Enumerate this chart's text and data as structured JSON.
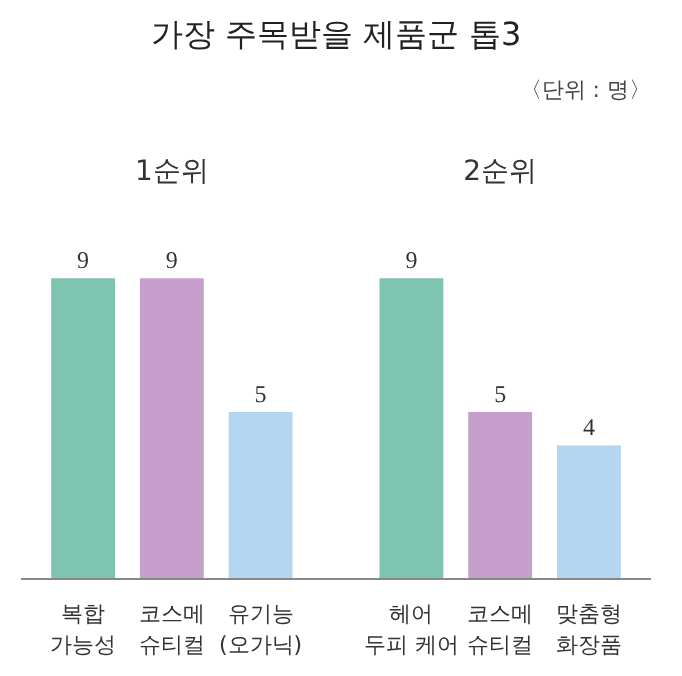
{
  "chart_data": {
    "type": "bar",
    "title": "가장 주목받을 제품군 톱3",
    "subtitle": "〈단위 : 명〉",
    "categories": [
      "복합\n가능성",
      "코스메\n슈티컬",
      "유기능\n(오가닉)",
      "헤어\n두피 케어",
      "코스메\n슈티컬",
      "맞춤형\n화장품"
    ],
    "values": [
      9,
      9,
      5,
      9,
      5,
      4
    ],
    "colors": [
      "#7fc4b0",
      "#c79fcc",
      "#b3d5f0",
      "#7fc4b0",
      "#c79fcc",
      "#b3d5f0"
    ],
    "annotations": [
      "1순위",
      "2순위"
    ],
    "data_labels": true,
    "grid": false
  }
}
